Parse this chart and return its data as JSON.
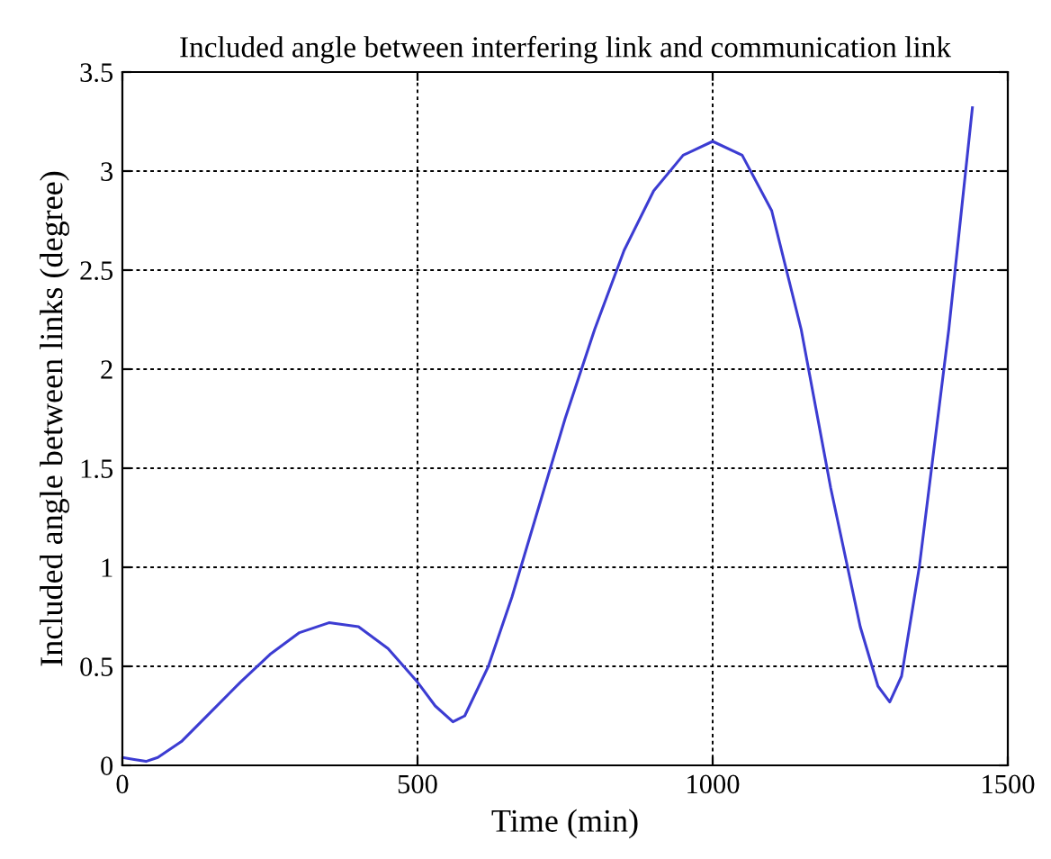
{
  "chart_data": {
    "type": "line",
    "title": "Included angle between interfering link and communication link",
    "xlabel": "Time (min)",
    "ylabel": "Included angle between links (degree)",
    "x": [
      0,
      20,
      40,
      60,
      100,
      150,
      200,
      250,
      300,
      350,
      400,
      450,
      500,
      530,
      560,
      580,
      620,
      660,
      700,
      750,
      800,
      850,
      900,
      950,
      1000,
      1050,
      1100,
      1150,
      1200,
      1250,
      1280,
      1300,
      1320,
      1350,
      1400,
      1440
    ],
    "series": [
      {
        "color": "#3c3cd2",
        "values": [
          0.04,
          0.03,
          0.02,
          0.04,
          0.12,
          0.27,
          0.42,
          0.56,
          0.67,
          0.72,
          0.7,
          0.59,
          0.42,
          0.3,
          0.22,
          0.25,
          0.5,
          0.85,
          1.25,
          1.75,
          2.2,
          2.6,
          2.9,
          3.08,
          3.15,
          3.08,
          2.8,
          2.2,
          1.4,
          0.7,
          0.4,
          0.32,
          0.45,
          1.0,
          2.2,
          3.32
        ]
      }
    ],
    "xlim": [
      0,
      1500
    ],
    "xticks": [
      0,
      500,
      1000,
      1500
    ],
    "ylim": [
      0,
      3.5
    ],
    "yticks": [
      0,
      0.5,
      1,
      1.5,
      2,
      2.5,
      3,
      3.5
    ],
    "grid": true,
    "line_style": "solid",
    "marker": "none"
  }
}
